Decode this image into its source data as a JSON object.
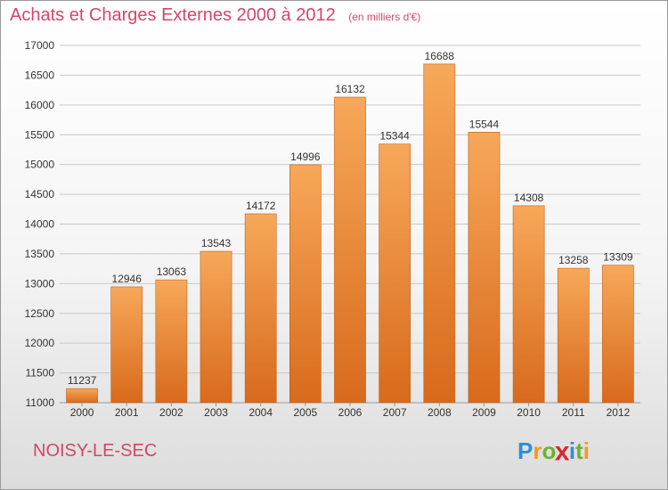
{
  "title": "Achats et Charges Externes 2000 à 2012",
  "subtitle": "(en milliers d'€)",
  "city": "NOISY-LE-SEC",
  "logo": {
    "letters": [
      "P",
      "r",
      "o",
      "x",
      "i",
      "t",
      "i"
    ],
    "colors": [
      "#2e8fd6",
      "#f29a1d",
      "#6fb12f",
      "#d9272e",
      "#2e8fd6",
      "#6fb12f",
      "#f29a1d"
    ]
  },
  "colors": {
    "title": "#d4466a",
    "bar_top": "#f7a85a",
    "bar_bottom": "#d86a1c",
    "grid": "#c8c8c8"
  },
  "chart_data": {
    "type": "bar",
    "categories": [
      "2000",
      "2001",
      "2002",
      "2003",
      "2004",
      "2005",
      "2006",
      "2007",
      "2008",
      "2009",
      "2010",
      "2011",
      "2012"
    ],
    "values": [
      11237,
      12946,
      13063,
      13543,
      14172,
      14996,
      16132,
      15344,
      16688,
      15544,
      14308,
      13258,
      13309
    ],
    "ylim": [
      11000,
      17000
    ],
    "yticks": [
      11000,
      11500,
      12000,
      12500,
      13000,
      13500,
      14000,
      14500,
      15000,
      15500,
      16000,
      16500,
      17000
    ],
    "grid": true
  }
}
